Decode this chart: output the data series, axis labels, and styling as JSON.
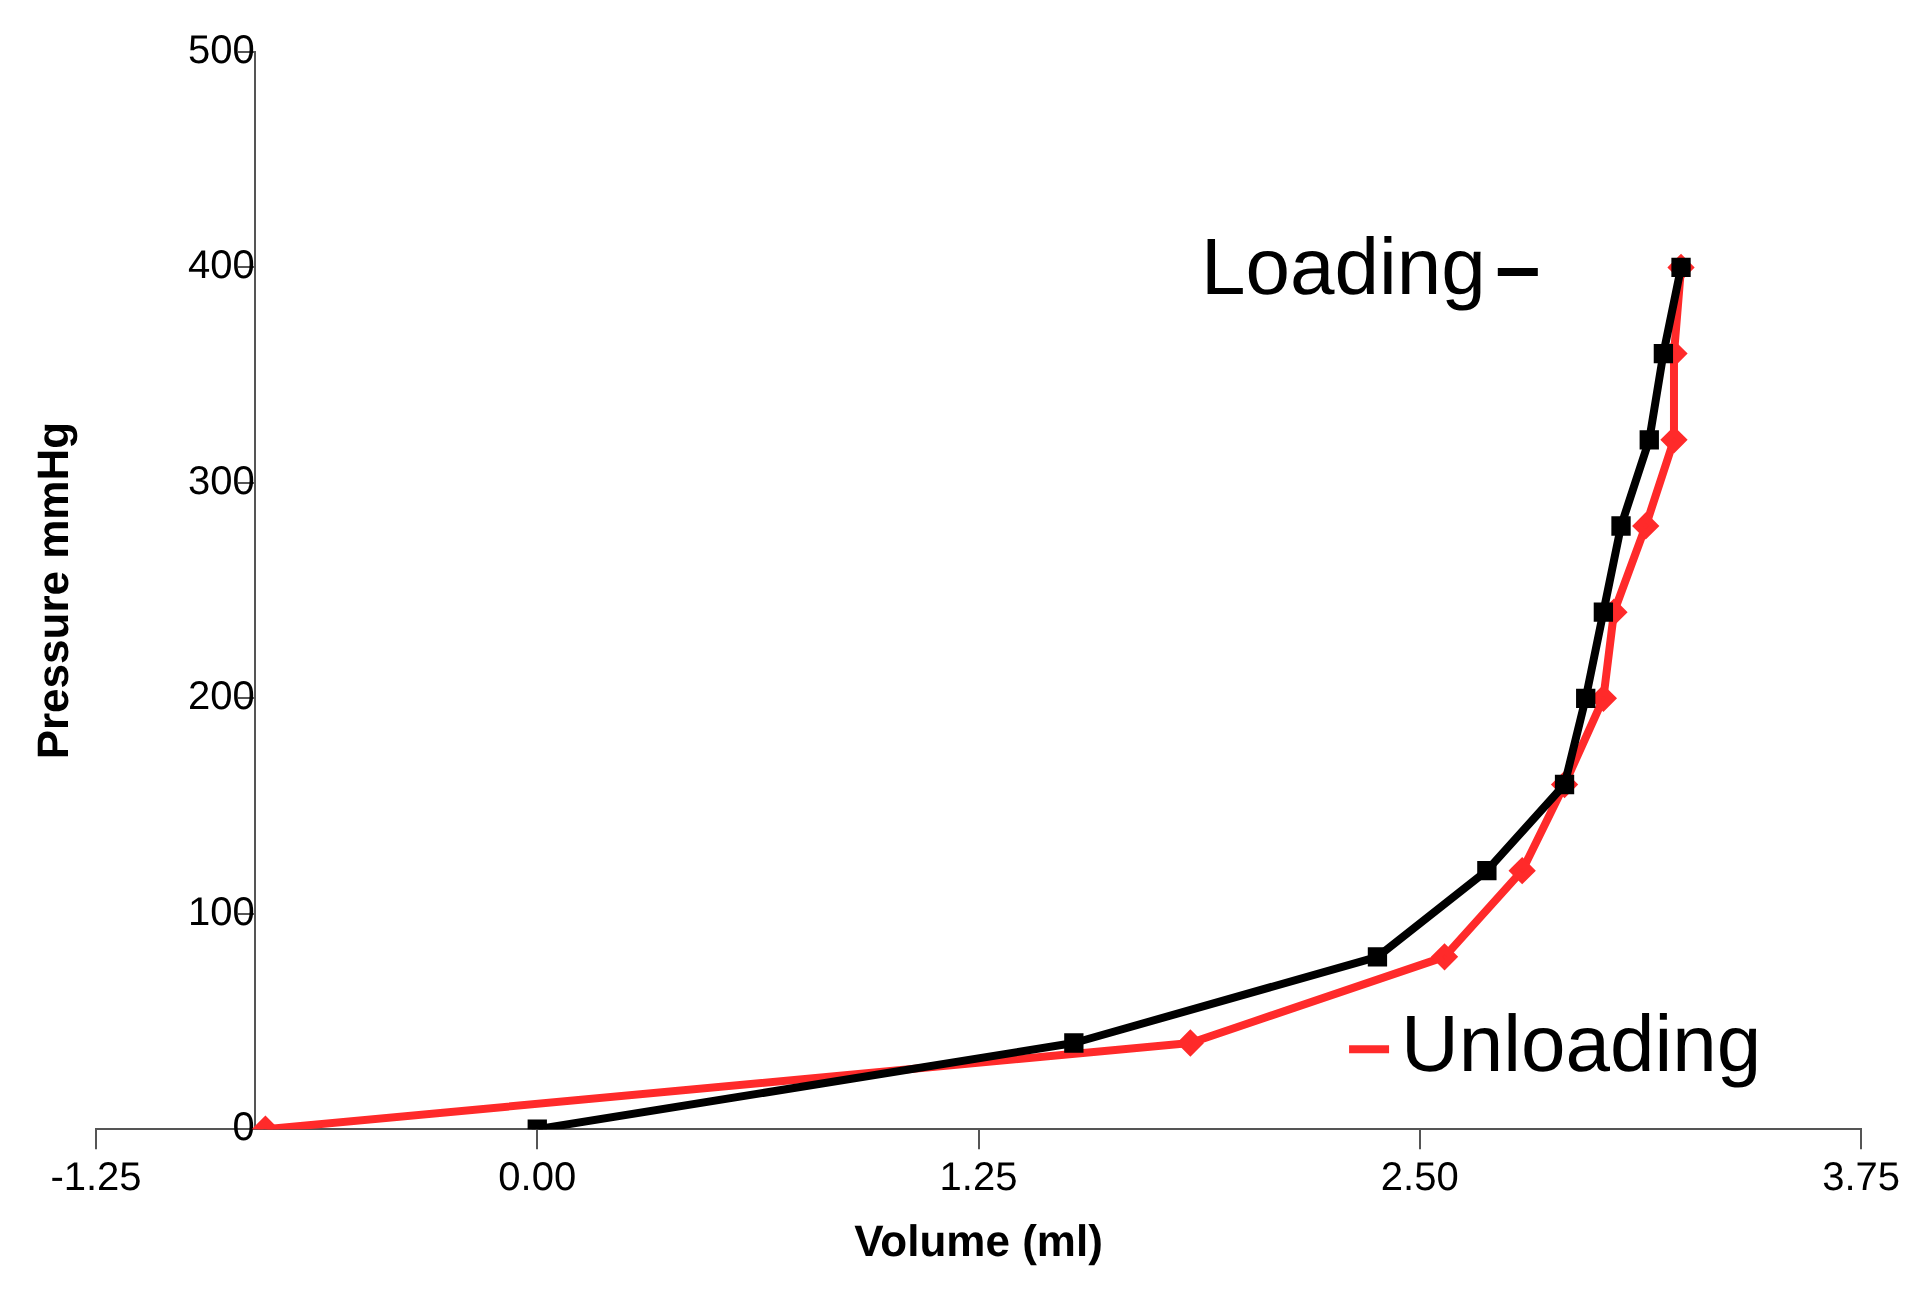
{
  "chart_data": {
    "type": "line",
    "xlabel": "Volume (ml)",
    "ylabel": "Pressure mmHg",
    "xlim": [
      -1.25,
      3.75
    ],
    "xticks": [
      {
        "value": -1.25,
        "label": "-1.25"
      },
      {
        "value": 0,
        "label": "0.00"
      },
      {
        "value": 1.25,
        "label": "1.25"
      },
      {
        "value": 2.5,
        "label": "2.50"
      },
      {
        "value": 3.75,
        "label": "3.75"
      }
    ],
    "ylim": [
      0,
      500
    ],
    "yticks": [
      0,
      100,
      200,
      300,
      400,
      500
    ],
    "grid": false,
    "legend": "right",
    "series": [
      {
        "name": "Loading",
        "color": "#000000",
        "marker": "square",
        "x": [
          0,
          1.52,
          2.38,
          2.69,
          2.91,
          2.97,
          3.02,
          3.07,
          3.15,
          3.19,
          3.24
        ],
        "values": [
          0,
          40,
          80,
          120,
          160,
          200,
          240,
          280,
          320,
          360,
          400
        ]
      },
      {
        "name": "Unloading",
        "color": "#ff2a2a",
        "marker": "diamond",
        "x": [
          3.24,
          3.22,
          3.22,
          3.14,
          3.05,
          3.02,
          2.91,
          2.79,
          2.57,
          1.85,
          -0.77
        ],
        "values": [
          400,
          360,
          320,
          280,
          240,
          200,
          160,
          120,
          80,
          40,
          0
        ]
      }
    ]
  }
}
